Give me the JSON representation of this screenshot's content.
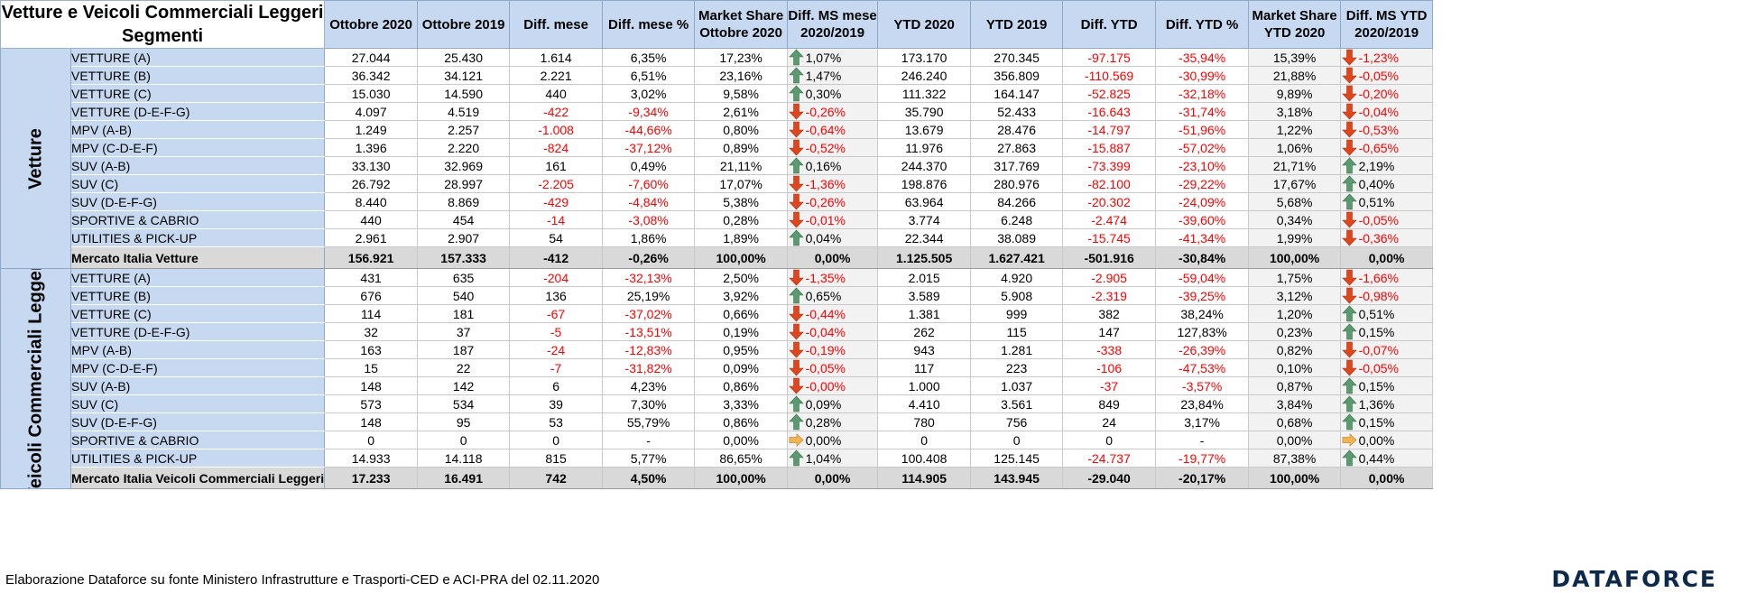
{
  "title_line1": "Vetture e Veicoli Commerciali Leggeri",
  "title_line2": "Segmenti",
  "columns": {
    "c1": "Ottobre 2020",
    "c2": "Ottobre 2019",
    "c3": "Diff. mese",
    "c4": "Diff. mese %",
    "c5a": "Market Share",
    "c5b": "Ottobre 2020",
    "c6a": "Diff. MS mese",
    "c6b": "2020/2019",
    "c7": "YTD 2020",
    "c8": "YTD 2019",
    "c9": "Diff. YTD",
    "c10": "Diff. YTD %",
    "c11a": "Market Share",
    "c11b": "YTD 2020",
    "c12a": "Diff. MS YTD",
    "c12b": "2020/2019"
  },
  "colors": {
    "header_bg": "#c6d9f1",
    "negative": "#ff0000",
    "up_arrow": "#5a9a6e",
    "down_arrow": "#e0461b",
    "flat_arrow": "#f2b352"
  },
  "groups": [
    {
      "label": "Vetture",
      "rows": [
        {
          "seg": "VETTURE (A)",
          "c1": "27.044",
          "c2": "25.430",
          "c3": "1.614",
          "c4": "6,35%",
          "c5": "17,23%",
          "a6": "up",
          "c6": "1,07%",
          "c7": "173.170",
          "c8": "270.345",
          "c9": "-97.175",
          "c10": "-35,94%",
          "c11": "15,39%",
          "a12": "down",
          "c12": "-1,23%"
        },
        {
          "seg": "VETTURE (B)",
          "c1": "36.342",
          "c2": "34.121",
          "c3": "2.221",
          "c4": "6,51%",
          "c5": "23,16%",
          "a6": "up",
          "c6": "1,47%",
          "c7": "246.240",
          "c8": "356.809",
          "c9": "-110.569",
          "c10": "-30,99%",
          "c11": "21,88%",
          "a12": "down",
          "c12": "-0,05%"
        },
        {
          "seg": "VETTURE (C)",
          "c1": "15.030",
          "c2": "14.590",
          "c3": "440",
          "c4": "3,02%",
          "c5": "9,58%",
          "a6": "up",
          "c6": "0,30%",
          "c7": "111.322",
          "c8": "164.147",
          "c9": "-52.825",
          "c10": "-32,18%",
          "c11": "9,89%",
          "a12": "down",
          "c12": "-0,20%"
        },
        {
          "seg": "VETTURE (D-E-F-G)",
          "c1": "4.097",
          "c2": "4.519",
          "c3": "-422",
          "c4": "-9,34%",
          "c5": "2,61%",
          "a6": "down",
          "c6": "-0,26%",
          "c7": "35.790",
          "c8": "52.433",
          "c9": "-16.643",
          "c10": "-31,74%",
          "c11": "3,18%",
          "a12": "down",
          "c12": "-0,04%"
        },
        {
          "seg": "MPV (A-B)",
          "c1": "1.249",
          "c2": "2.257",
          "c3": "-1.008",
          "c4": "-44,66%",
          "c5": "0,80%",
          "a6": "down",
          "c6": "-0,64%",
          "c7": "13.679",
          "c8": "28.476",
          "c9": "-14.797",
          "c10": "-51,96%",
          "c11": "1,22%",
          "a12": "down",
          "c12": "-0,53%"
        },
        {
          "seg": "MPV (C-D-E-F)",
          "c1": "1.396",
          "c2": "2.220",
          "c3": "-824",
          "c4": "-37,12%",
          "c5": "0,89%",
          "a6": "down",
          "c6": "-0,52%",
          "c7": "11.976",
          "c8": "27.863",
          "c9": "-15.887",
          "c10": "-57,02%",
          "c11": "1,06%",
          "a12": "down",
          "c12": "-0,65%"
        },
        {
          "seg": "SUV (A-B)",
          "c1": "33.130",
          "c2": "32.969",
          "c3": "161",
          "c4": "0,49%",
          "c5": "21,11%",
          "a6": "up",
          "c6": "0,16%",
          "c7": "244.370",
          "c8": "317.769",
          "c9": "-73.399",
          "c10": "-23,10%",
          "c11": "21,71%",
          "a12": "up",
          "c12": "2,19%"
        },
        {
          "seg": "SUV (C)",
          "c1": "26.792",
          "c2": "28.997",
          "c3": "-2.205",
          "c4": "-7,60%",
          "c5": "17,07%",
          "a6": "down",
          "c6": "-1,36%",
          "c7": "198.876",
          "c8": "280.976",
          "c9": "-82.100",
          "c10": "-29,22%",
          "c11": "17,67%",
          "a12": "up",
          "c12": "0,40%"
        },
        {
          "seg": "SUV (D-E-F-G)",
          "c1": "8.440",
          "c2": "8.869",
          "c3": "-429",
          "c4": "-4,84%",
          "c5": "5,38%",
          "a6": "down",
          "c6": "-0,26%",
          "c7": "63.964",
          "c8": "84.266",
          "c9": "-20.302",
          "c10": "-24,09%",
          "c11": "5,68%",
          "a12": "up",
          "c12": "0,51%"
        },
        {
          "seg": "SPORTIVE & CABRIO",
          "c1": "440",
          "c2": "454",
          "c3": "-14",
          "c4": "-3,08%",
          "c5": "0,28%",
          "a6": "down",
          "c6": "-0,01%",
          "c7": "3.774",
          "c8": "6.248",
          "c9": "-2.474",
          "c10": "-39,60%",
          "c11": "0,34%",
          "a12": "down",
          "c12": "-0,05%"
        },
        {
          "seg": "UTILITIES & PICK-UP",
          "c1": "2.961",
          "c2": "2.907",
          "c3": "54",
          "c4": "1,86%",
          "c5": "1,89%",
          "a6": "up",
          "c6": "0,04%",
          "c7": "22.344",
          "c8": "38.089",
          "c9": "-15.745",
          "c10": "-41,34%",
          "c11": "1,99%",
          "a12": "down",
          "c12": "-0,36%"
        }
      ],
      "total": {
        "seg": "Mercato Italia Vetture",
        "c1": "156.921",
        "c2": "157.333",
        "c3": "-412",
        "c4": "-0,26%",
        "c5": "100,00%",
        "c6": "0,00%",
        "c7": "1.125.505",
        "c8": "1.627.421",
        "c9": "-501.916",
        "c10": "-30,84%",
        "c11": "100,00%",
        "c12": "0,00%"
      }
    },
    {
      "label": "Veicoli Commerciali Leggeri",
      "rows": [
        {
          "seg": "VETTURE (A)",
          "c1": "431",
          "c2": "635",
          "c3": "-204",
          "c4": "-32,13%",
          "c5": "2,50%",
          "a6": "down",
          "c6": "-1,35%",
          "c7": "2.015",
          "c8": "4.920",
          "c9": "-2.905",
          "c10": "-59,04%",
          "c11": "1,75%",
          "a12": "down",
          "c12": "-1,66%"
        },
        {
          "seg": "VETTURE (B)",
          "c1": "676",
          "c2": "540",
          "c3": "136",
          "c4": "25,19%",
          "c5": "3,92%",
          "a6": "up",
          "c6": "0,65%",
          "c7": "3.589",
          "c8": "5.908",
          "c9": "-2.319",
          "c10": "-39,25%",
          "c11": "3,12%",
          "a12": "down",
          "c12": "-0,98%"
        },
        {
          "seg": "VETTURE (C)",
          "c1": "114",
          "c2": "181",
          "c3": "-67",
          "c4": "-37,02%",
          "c5": "0,66%",
          "a6": "down",
          "c6": "-0,44%",
          "c7": "1.381",
          "c8": "999",
          "c9": "382",
          "c10": "38,24%",
          "c11": "1,20%",
          "a12": "up",
          "c12": "0,51%"
        },
        {
          "seg": "VETTURE (D-E-F-G)",
          "c1": "32",
          "c2": "37",
          "c3": "-5",
          "c4": "-13,51%",
          "c5": "0,19%",
          "a6": "down",
          "c6": "-0,04%",
          "c7": "262",
          "c8": "115",
          "c9": "147",
          "c10": "127,83%",
          "c11": "0,23%",
          "a12": "up",
          "c12": "0,15%"
        },
        {
          "seg": "MPV (A-B)",
          "c1": "163",
          "c2": "187",
          "c3": "-24",
          "c4": "-12,83%",
          "c5": "0,95%",
          "a6": "down",
          "c6": "-0,19%",
          "c7": "943",
          "c8": "1.281",
          "c9": "-338",
          "c10": "-26,39%",
          "c11": "0,82%",
          "a12": "down",
          "c12": "-0,07%"
        },
        {
          "seg": "MPV (C-D-E-F)",
          "c1": "15",
          "c2": "22",
          "c3": "-7",
          "c4": "-31,82%",
          "c5": "0,09%",
          "a6": "down",
          "c6": "-0,05%",
          "c7": "117",
          "c8": "223",
          "c9": "-106",
          "c10": "-47,53%",
          "c11": "0,10%",
          "a12": "down",
          "c12": "-0,05%"
        },
        {
          "seg": "SUV (A-B)",
          "c1": "148",
          "c2": "142",
          "c3": "6",
          "c4": "4,23%",
          "c5": "0,86%",
          "a6": "down",
          "c6": "-0,00%",
          "c7": "1.000",
          "c8": "1.037",
          "c9": "-37",
          "c10": "-3,57%",
          "c11": "0,87%",
          "a12": "up",
          "c12": "0,15%"
        },
        {
          "seg": "SUV (C)",
          "c1": "573",
          "c2": "534",
          "c3": "39",
          "c4": "7,30%",
          "c5": "3,33%",
          "a6": "up",
          "c6": "0,09%",
          "c7": "4.410",
          "c8": "3.561",
          "c9": "849",
          "c10": "23,84%",
          "c11": "3,84%",
          "a12": "up",
          "c12": "1,36%"
        },
        {
          "seg": "SUV (D-E-F-G)",
          "c1": "148",
          "c2": "95",
          "c3": "53",
          "c4": "55,79%",
          "c5": "0,86%",
          "a6": "up",
          "c6": "0,28%",
          "c7": "780",
          "c8": "756",
          "c9": "24",
          "c10": "3,17%",
          "c11": "0,68%",
          "a12": "up",
          "c12": "0,15%"
        },
        {
          "seg": "SPORTIVE & CABRIO",
          "c1": "0",
          "c2": "0",
          "c3": "0",
          "c4": "-",
          "c5": "0,00%",
          "a6": "flat",
          "c6": "0,00%",
          "c7": "0",
          "c8": "0",
          "c9": "0",
          "c10": "-",
          "c11": "0,00%",
          "a12": "flat",
          "c12": "0,00%"
        },
        {
          "seg": "UTILITIES & PICK-UP",
          "c1": "14.933",
          "c2": "14.118",
          "c3": "815",
          "c4": "5,77%",
          "c5": "86,65%",
          "a6": "up",
          "c6": "1,04%",
          "c7": "100.408",
          "c8": "125.145",
          "c9": "-24.737",
          "c10": "-19,77%",
          "c11": "87,38%",
          "a12": "up",
          "c12": "0,44%"
        }
      ],
      "total": {
        "seg": "Mercato Italia Veicoli Commerciali Leggeri",
        "c1": "17.233",
        "c2": "16.491",
        "c3": "742",
        "c4": "4,50%",
        "c5": "100,00%",
        "c6": "0,00%",
        "c7": "114.905",
        "c8": "143.945",
        "c9": "-29.040",
        "c10": "-20,17%",
        "c11": "100,00%",
        "c12": "0,00%"
      }
    }
  ],
  "footer": "Elaborazione Dataforce su fonte Ministero Infrastrutture e Trasporti-CED e ACI-PRA del 02.11.2020",
  "logo": "DATAFORCE"
}
